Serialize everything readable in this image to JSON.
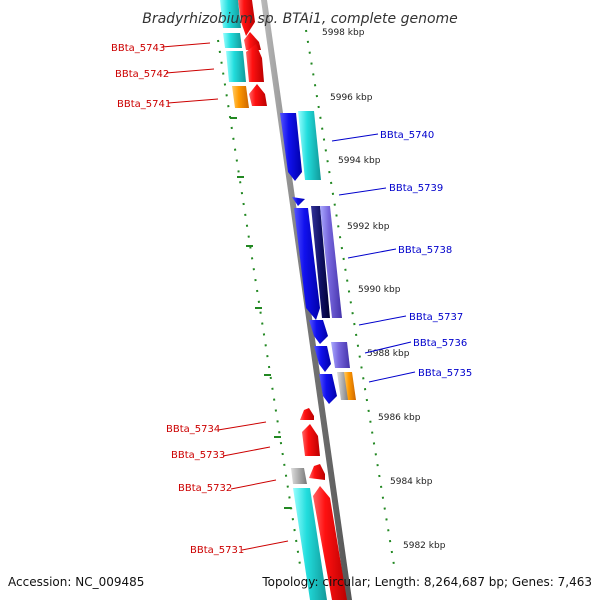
{
  "title": "Bradyrhizobium sp. BTAi1, complete genome",
  "footer": {
    "accession": "Accession: NC_009485",
    "summary": "Topology: circular; Length: 8,264,687 bp; Genes: 7,463"
  },
  "ticks": [
    "5998 kbp",
    "5996 kbp",
    "5994 kbp",
    "5992 kbp",
    "5990 kbp",
    "5988 kbp",
    "5986 kbp",
    "5984 kbp",
    "5982 kbp"
  ],
  "genes": [
    {
      "label": "BBta_5743",
      "strand": "forward",
      "color": "#ee0000"
    },
    {
      "label": "BBta_5742",
      "strand": "forward",
      "color": "#ee0000"
    },
    {
      "label": "BBta_5741",
      "strand": "forward",
      "color": "#ee0000"
    },
    {
      "label": "BBta_5740",
      "strand": "reverse",
      "color": "#0000ee"
    },
    {
      "label": "BBta_5739",
      "strand": "reverse",
      "color": "#0000ee"
    },
    {
      "label": "BBta_5738",
      "strand": "reverse",
      "color": "#0000ee"
    },
    {
      "label": "BBta_5737",
      "strand": "reverse",
      "color": "#0000ee"
    },
    {
      "label": "BBta_5736",
      "strand": "reverse",
      "color": "#0000ee"
    },
    {
      "label": "BBta_5735",
      "strand": "reverse",
      "color": "#0000ee"
    },
    {
      "label": "BBta_5734",
      "strand": "forward",
      "color": "#ee0000"
    },
    {
      "label": "BBta_5733",
      "strand": "forward",
      "color": "#ee0000"
    },
    {
      "label": "BBta_5732",
      "strand": "forward",
      "color": "#ee0000"
    },
    {
      "label": "BBta_5731",
      "strand": "forward",
      "color": "#ee0000"
    }
  ],
  "colors": {
    "forward": "#ee0000",
    "reverse": "#0000ee",
    "cyan": "#22cccc",
    "orange": "#ff9900",
    "purple": "#7766cc",
    "navy": "#111177",
    "gray": "#aaaaaa",
    "backbone": "#888888",
    "tick_marks": "#228822"
  }
}
